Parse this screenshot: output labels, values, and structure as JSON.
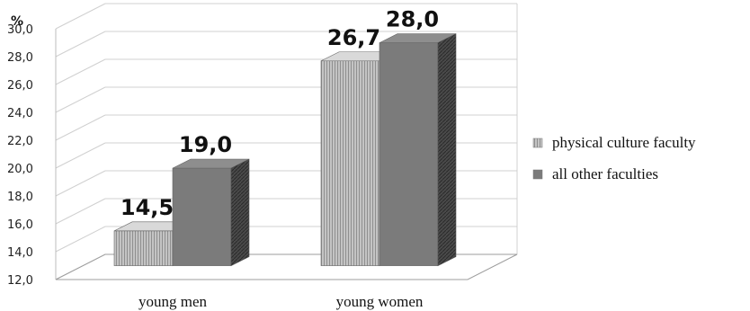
{
  "chart_data": {
    "type": "bar",
    "style": "3d-clustered-column",
    "y_unit": "%",
    "categories": [
      "young men",
      "young women"
    ],
    "series": [
      {
        "name": "physical culture faculty",
        "values": [
          14.5,
          26.7
        ],
        "labels": [
          "14,5",
          "26,7"
        ],
        "color": "#b5b5b5",
        "pattern": "vertical-stripes"
      },
      {
        "name": "all other faculties",
        "values": [
          19.0,
          28.0
        ],
        "labels": [
          "19,0",
          "28,0"
        ],
        "color": "#7b7b7b",
        "pattern": "solid"
      }
    ],
    "ylim": [
      12,
      30
    ],
    "yticks": [
      "12,0",
      "14,0",
      "16,0",
      "18,0",
      "20,0",
      "22,0",
      "24,0",
      "26,0",
      "28,0",
      "30,0"
    ],
    "ytick_values": [
      12,
      14,
      16,
      18,
      20,
      22,
      24,
      26,
      28,
      30
    ],
    "grid": true,
    "legend_position": "right"
  }
}
